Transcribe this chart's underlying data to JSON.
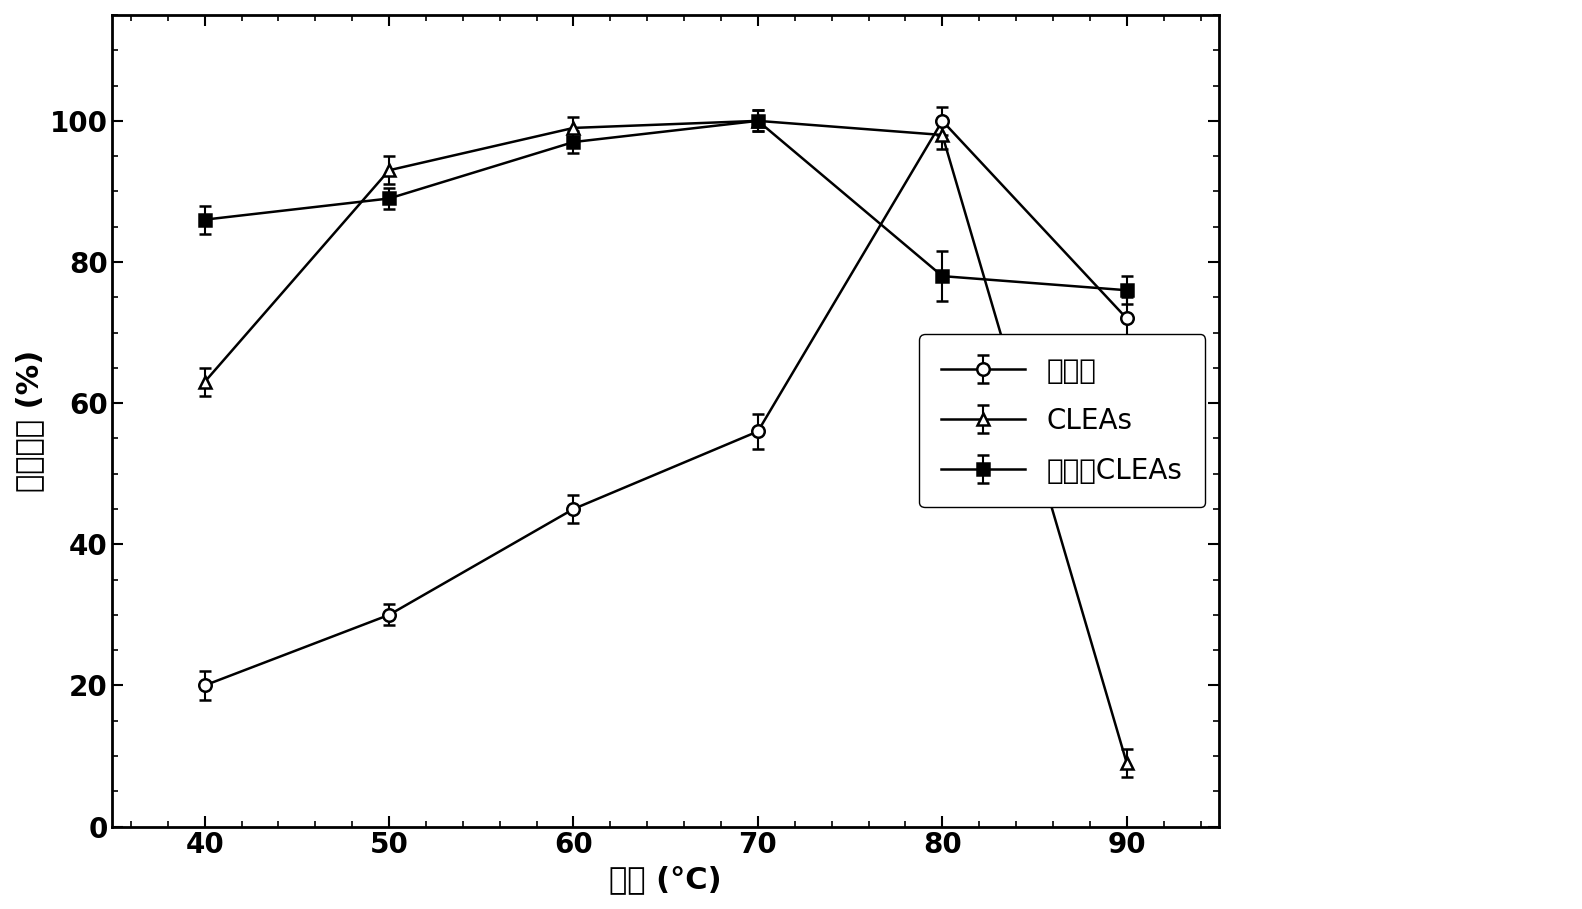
{
  "x": [
    40,
    50,
    60,
    70,
    80,
    90
  ],
  "free_enzyme": {
    "y": [
      20,
      30,
      45,
      56,
      100,
      72
    ],
    "yerr": [
      2,
      1.5,
      2,
      2.5,
      2,
      3
    ],
    "label": "游离酶",
    "marker": "o",
    "color": "#000000"
  },
  "cleas": {
    "y": [
      63,
      93,
      99,
      100,
      98,
      9
    ],
    "yerr": [
      2,
      2,
      1.5,
      1.5,
      2,
      2
    ],
    "label": "CLEAs",
    "marker": "^",
    "color": "#000000"
  },
  "immobilized_cleas": {
    "y": [
      86,
      89,
      97,
      100,
      78,
      76
    ],
    "yerr": [
      2,
      1.5,
      1.5,
      1.5,
      3.5,
      2
    ],
    "label": "固载化CLEAs",
    "marker": "s",
    "color": "#000000"
  },
  "xlabel": "温度 (°C)",
  "ylabel": "相对酶活 (%)",
  "xlim": [
    35,
    95
  ],
  "ylim": [
    0,
    115
  ],
  "yticks": [
    0,
    20,
    40,
    60,
    80,
    100
  ],
  "xticks": [
    40,
    50,
    60,
    70,
    80,
    90
  ],
  "background_color": "#ffffff",
  "linewidth": 1.8,
  "markersize": 9,
  "capsize": 4,
  "elinewidth": 1.5,
  "fontsize_label": 22,
  "fontsize_tick": 20,
  "fontsize_legend": 20
}
